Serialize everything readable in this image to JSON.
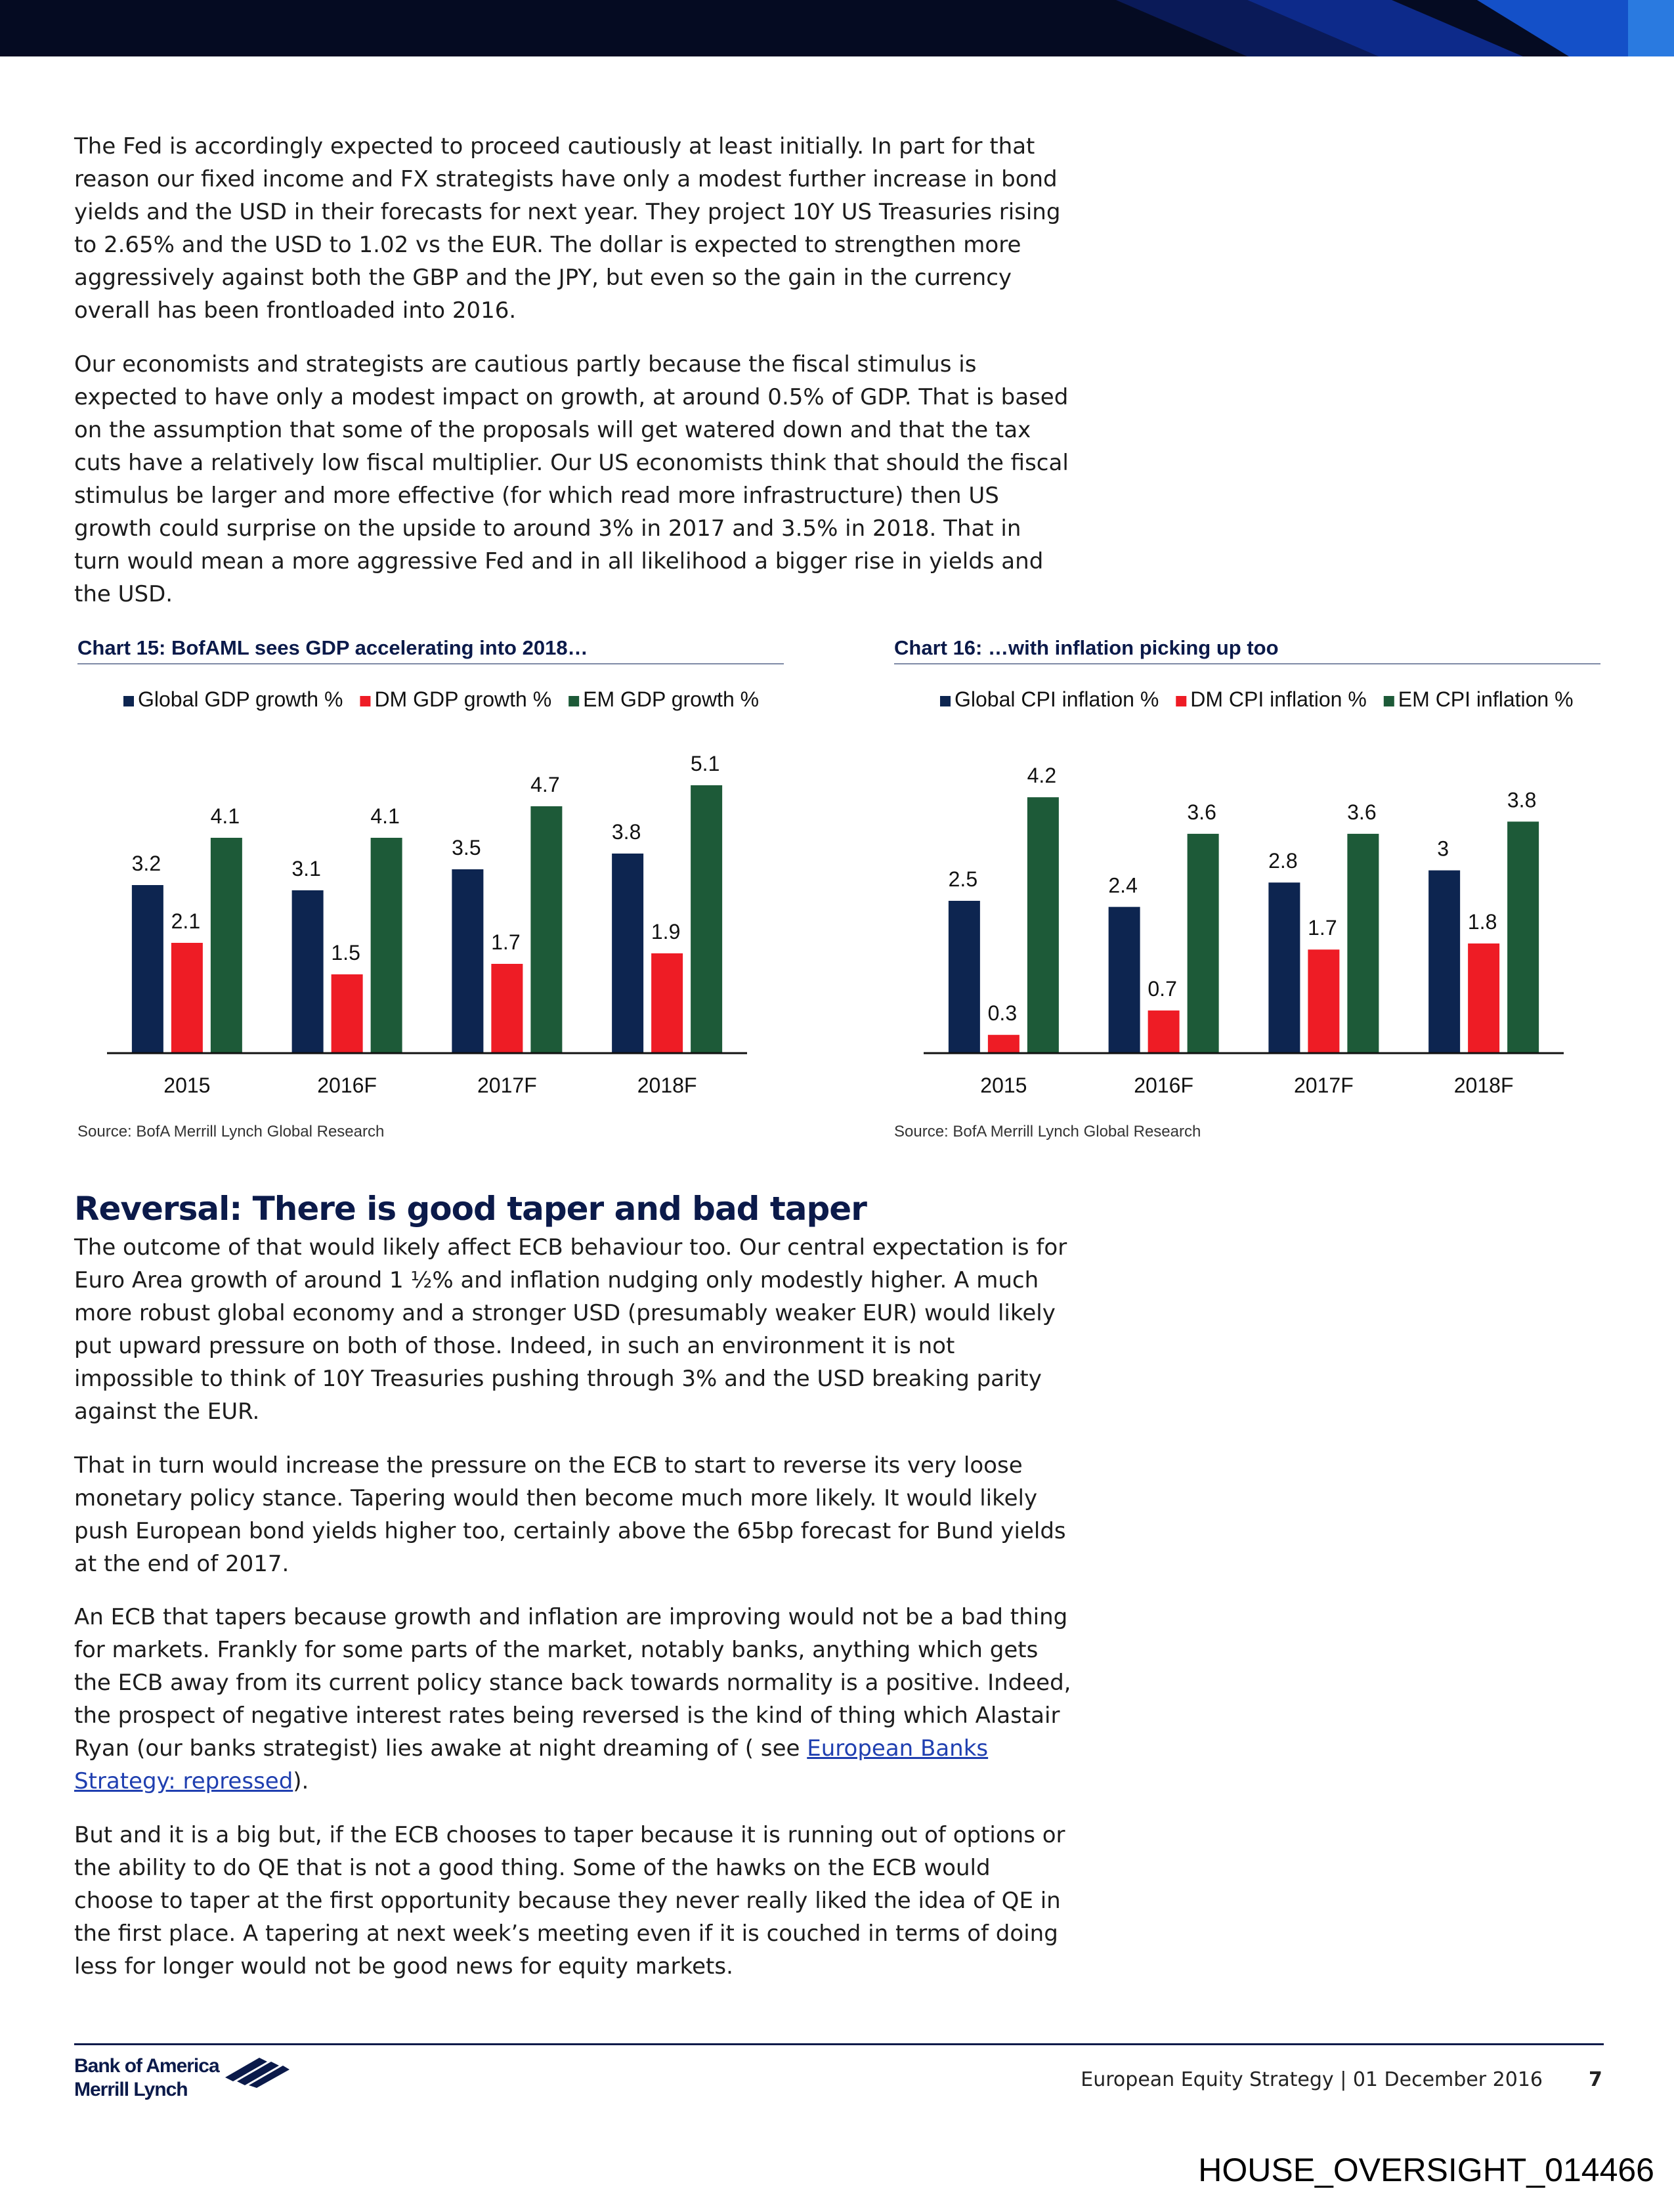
{
  "body": {
    "p1": "The Fed is accordingly expected to proceed cautiously at least initially. In part for that reason our fixed income and FX strategists have only a modest further increase in bond yields and the USD in their forecasts for next year. They project 10Y US Treasuries rising to 2.65% and the USD to 1.02 vs the EUR. The dollar is expected to strengthen more aggressively against both the GBP and the JPY, but even so the gain in the currency overall has been frontloaded into 2016.",
    "p2": "Our economists and strategists are cautious partly because the fiscal stimulus is expected to have only a modest impact on growth, at around 0.5% of GDP. That is based on the assumption that some of the proposals will get watered down and that the tax cuts have a relatively low fiscal multiplier. Our US economists think that should the fiscal stimulus be larger and more effective (for which read more infrastructure) then US growth could surprise on the upside to around 3% in 2017 and 3.5% in 2018. That in turn would mean a more aggressive Fed and in all likelihood a bigger rise in yields and the USD.",
    "section_heading": "Reversal: There is good taper and bad taper",
    "p3": "The outcome of that would likely affect ECB behaviour too. Our central expectation is for Euro Area growth of around 1 ½% and inflation nudging only modestly higher. A much more robust global economy and a stronger USD (presumably weaker EUR) would likely put upward pressure on both of those. Indeed, in such an environment it is not impossible to think of 10Y Treasuries pushing through 3% and the USD breaking parity against the EUR.",
    "p4": "That in turn would increase the pressure on the ECB to start to reverse its very loose monetary policy stance. Tapering would then become much more likely. It would likely push European bond yields higher too, certainly above the 65bp forecast for Bund yields at the end of 2017.",
    "p5_before": "An ECB that tapers because growth and inflation are improving would not be a bad thing for markets. Frankly for some parts of the market, notably banks, anything which gets the ECB away from its current policy stance back towards normality is a positive. Indeed, the prospect of negative interest rates being reversed is the kind of thing which Alastair Ryan (our banks strategist) lies awake at night dreaming of ( see ",
    "p5_link": "European Banks Strategy: repressed",
    "p5_after": ").",
    "p6": "But and it is a big but, if the ECB chooses to taper because it is running out of options or the ability to do QE that is not a good thing. Some of the hawks on the ECB would choose to taper at the first opportunity because they never really liked the idea of QE in the first place. A tapering at next week’s meeting even if it is couched in terms of doing less for longer would not be good news for equity markets."
  },
  "chart_data": [
    {
      "type": "bar",
      "title": "Chart 15: BofAML sees GDP accelerating into 2018…",
      "categories": [
        "2015",
        "2016F",
        "2017F",
        "2018F"
      ],
      "series": [
        {
          "name": "Global GDP growth %",
          "values": [
            3.2,
            3.1,
            3.5,
            3.8
          ],
          "color": "#0d2550"
        },
        {
          "name": "DM GDP growth %",
          "values": [
            2.1,
            1.5,
            1.7,
            1.9
          ],
          "color": "#ee1c25"
        },
        {
          "name": "EM GDP growth %",
          "values": [
            4.1,
            4.1,
            4.7,
            5.1
          ],
          "color": "#1d5a38"
        }
      ],
      "ylim": [
        0,
        5.8
      ],
      "grid": false,
      "legend": "top",
      "source": "Source: BofA Merrill Lynch Global Research"
    },
    {
      "type": "bar",
      "title": "Chart 16: …with inflation picking up too",
      "categories": [
        "2015",
        "2016F",
        "2017F",
        "2018F"
      ],
      "series": [
        {
          "name": "Global CPI inflation %",
          "values": [
            2.5,
            2.4,
            2.8,
            3
          ],
          "color": "#0d2550"
        },
        {
          "name": "DM CPI inflation %",
          "values": [
            0.3,
            0.7,
            1.7,
            1.8
          ],
          "color": "#ee1c25"
        },
        {
          "name": "EM CPI inflation %",
          "values": [
            4.2,
            3.6,
            3.6,
            3.8
          ],
          "color": "#1d5a38"
        }
      ],
      "ylim": [
        0,
        5
      ],
      "grid": false,
      "legend": "top",
      "source": "Source: BofA Merrill Lynch Global Research"
    }
  ],
  "footer": {
    "logo_line1": "Bank of America",
    "logo_line2": "Merrill Lynch",
    "publication": "European Equity Strategy | 01 December 2016",
    "page_number": "7"
  },
  "bates_number": "HOUSE_OVERSIGHT_014466",
  "colors": {
    "navy": "#0b1a4a",
    "series_global": "#0d2550",
    "series_dm": "#ee1c25",
    "series_em": "#1d5a38",
    "link": "#1f3fb0"
  }
}
